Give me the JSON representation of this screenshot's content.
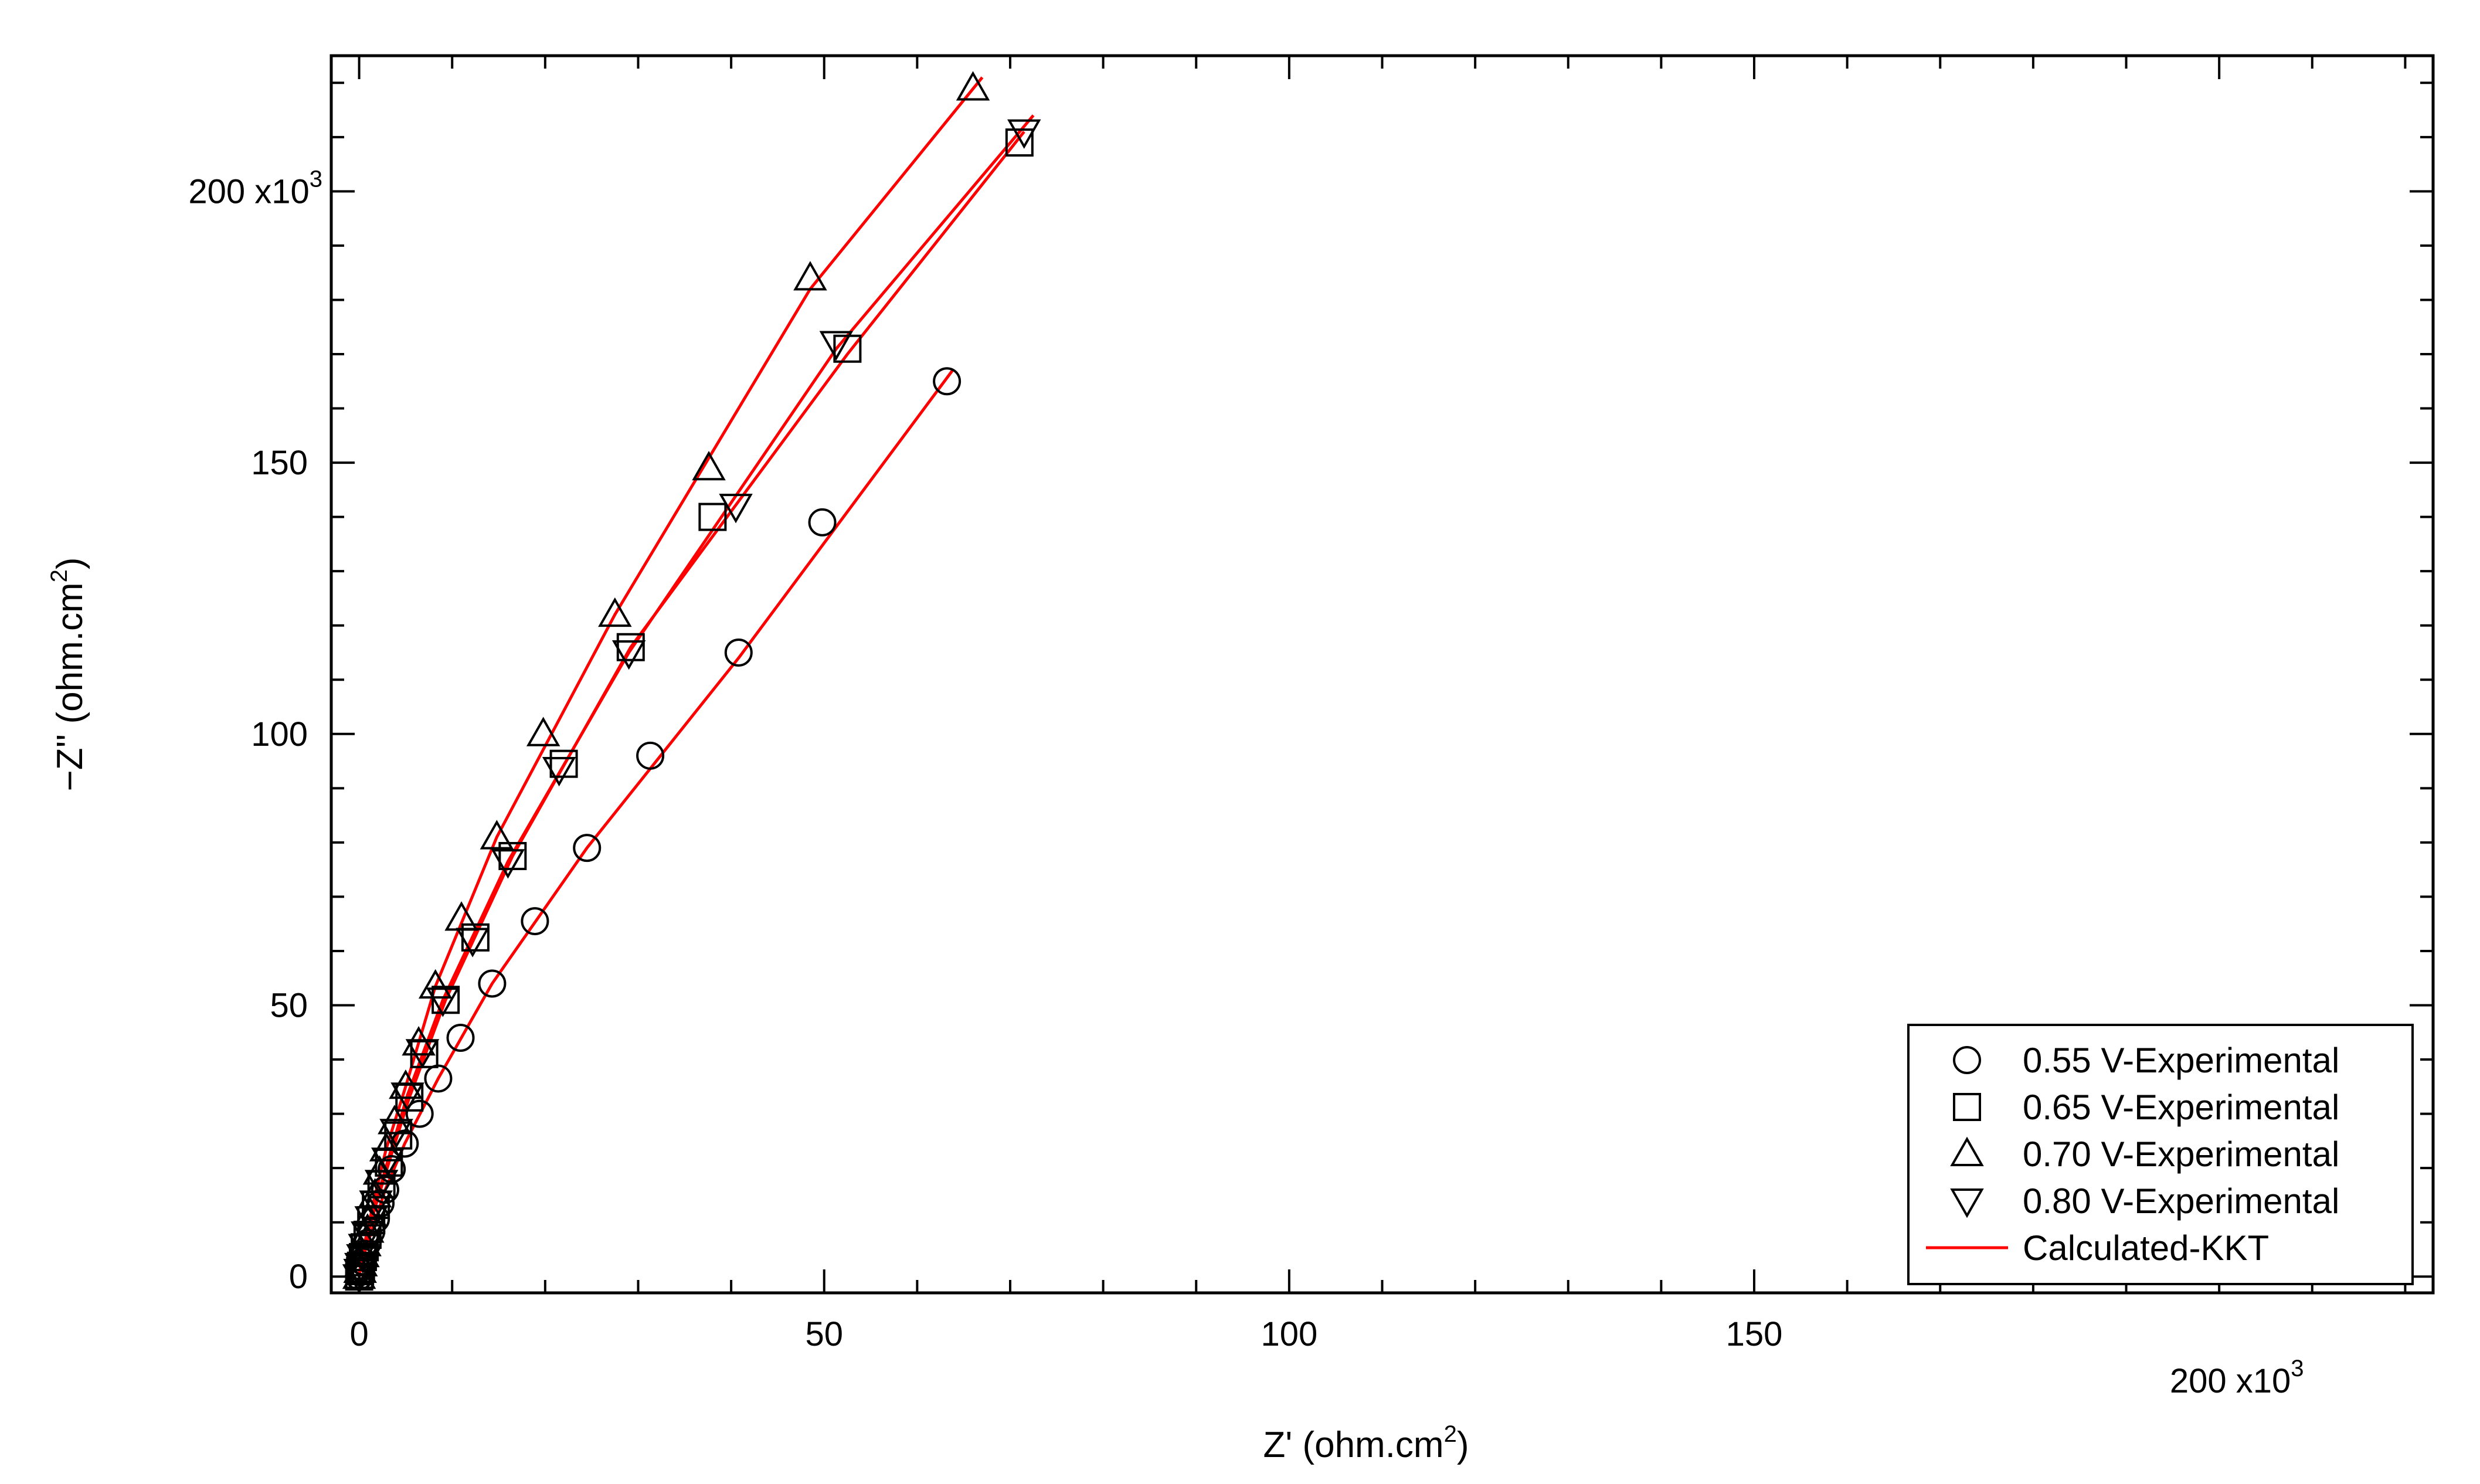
{
  "chart_data": {
    "type": "scatter",
    "xlabel_main": "Z' (ohm.cm",
    "xlabel_sup": "2",
    "xlabel_end": ")",
    "ylabel_main": "−Z'' (ohm.cm",
    "ylabel_sup": "2",
    "ylabel_end": ")",
    "xlim": [
      -3000,
      223000
    ],
    "ylim": [
      -3000,
      225000
    ],
    "x_ticks": [
      0,
      50000,
      100000,
      150000,
      200000
    ],
    "x_tick_labels": [
      "0",
      "50",
      "100",
      "150",
      "200 x10"
    ],
    "y_ticks": [
      0,
      50000,
      100000,
      150000,
      200000
    ],
    "y_tick_labels": [
      "0",
      "50",
      "100",
      "150",
      "200 x10"
    ],
    "multiplier_sup": "3",
    "legend_position": "bottom-right",
    "line_color": "#ff0000",
    "marker_color": "#000000",
    "series": [
      {
        "name": "0.55 V-Experimental",
        "marker": "circle",
        "x": [
          0,
          100,
          200,
          400,
          600,
          900,
          1300,
          1800,
          2300,
          2800,
          3500,
          4900,
          6500,
          8500,
          10900,
          14300,
          18900,
          24500,
          31300,
          40800,
          49800,
          63200
        ],
        "y": [
          0,
          800,
          1600,
          2800,
          4200,
          6200,
          8300,
          10600,
          13500,
          16000,
          19800,
          24500,
          30000,
          36500,
          44000,
          54000,
          65500,
          79000,
          96000,
          115000,
          139000,
          165000
        ]
      },
      {
        "name": "0.65 V-Experimental",
        "marker": "square",
        "x": [
          0,
          100,
          200,
          400,
          600,
          900,
          1300,
          1800,
          2400,
          3200,
          4200,
          5400,
          7000,
          9300,
          12500,
          16500,
          22000,
          29200,
          38000,
          52500,
          71000
        ],
        "y": [
          0,
          1000,
          2000,
          3600,
          5400,
          7700,
          10400,
          13200,
          17000,
          21000,
          26000,
          33000,
          41000,
          51000,
          62500,
          77500,
          94500,
          116000,
          140000,
          171000,
          209000
        ]
      },
      {
        "name": "0.70 V-Experimental",
        "marker": "triangle-up",
        "x": [
          0,
          100,
          200,
          400,
          600,
          900,
          1200,
          1700,
          2200,
          2900,
          3800,
          5000,
          6400,
          8200,
          11000,
          14800,
          19800,
          27500,
          37600,
          48500,
          66000
        ],
        "y": [
          0,
          1100,
          2300,
          4000,
          6000,
          8500,
          11500,
          15000,
          19200,
          23500,
          28500,
          35000,
          43000,
          53500,
          66000,
          81000,
          100000,
          122000,
          149000,
          184000,
          219000
        ]
      },
      {
        "name": "0.80 V-Experimental",
        "marker": "triangle-down",
        "x": [
          0,
          100,
          200,
          400,
          600,
          900,
          1300,
          1800,
          2400,
          3100,
          4000,
          5200,
          6800,
          9000,
          12200,
          16000,
          21500,
          29000,
          40500,
          51300,
          71500
        ],
        "y": [
          0,
          1000,
          2100,
          3700,
          5600,
          7900,
          10700,
          13600,
          17400,
          21500,
          26800,
          33500,
          41500,
          51000,
          62000,
          76500,
          93500,
          115000,
          142000,
          172000,
          211000
        ]
      },
      {
        "name": "Calculated-KKT",
        "marker": "line",
        "lines": [
          {
            "x": [
              0,
              300,
              900,
              1800,
              2800,
              4900,
              8500,
              14300,
              24500,
              40800,
              63800
            ],
            "y": [
              0,
              2800,
              6200,
              10600,
              16000,
              24500,
              36500,
              54000,
              79000,
              114000,
              167000
            ]
          },
          {
            "x": [
              0,
              300,
              900,
              1800,
              3200,
              5400,
              9300,
              16500,
              29200,
              52500,
              71500
            ],
            "y": [
              0,
              3600,
              7700,
              13200,
              21000,
              33000,
              51000,
              77500,
              116000,
              170000,
              211000
            ]
          },
          {
            "x": [
              0,
              300,
              900,
              1700,
              2900,
              5000,
              8200,
              14800,
              27500,
              48500,
              67000
            ],
            "y": [
              0,
              4000,
              8500,
              15000,
              23500,
              35000,
              53500,
              81000,
              122000,
              182000,
              221000
            ]
          },
          {
            "x": [
              0,
              300,
              900,
              1800,
              3100,
              5200,
              9000,
              16000,
              29000,
              51300,
              72500
            ],
            "y": [
              0,
              3700,
              7900,
              13600,
              21500,
              33500,
              51000,
              76500,
              115000,
              171000,
              214000
            ]
          }
        ]
      }
    ]
  }
}
